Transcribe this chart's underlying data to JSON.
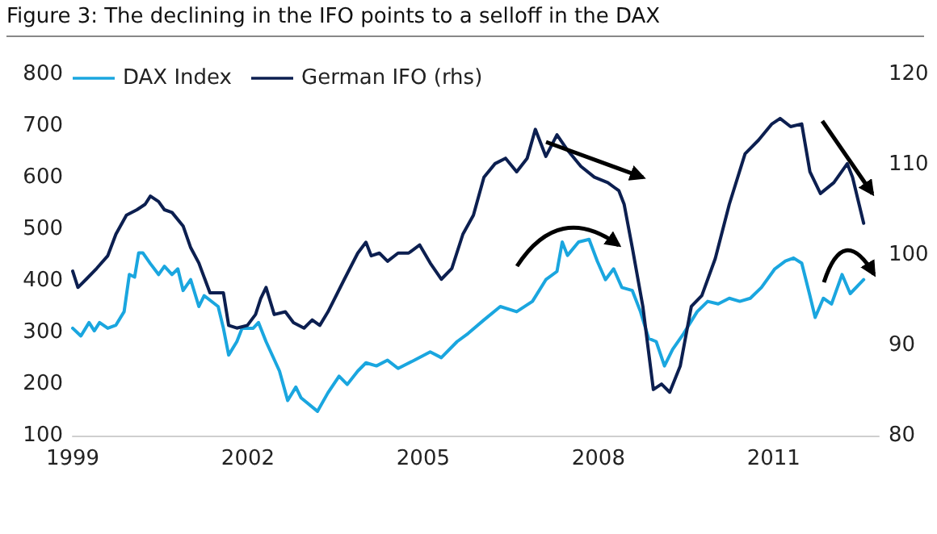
{
  "chart_data": {
    "type": "line",
    "title": "Figure 3: The declining in the IFO points to a selloff in the DAX",
    "xlim": [
      1999,
      2012.8
    ],
    "xticks": [
      1999,
      2002,
      2005,
      2008,
      2011
    ],
    "ylim": [
      100,
      800
    ],
    "yticks": [
      100,
      200,
      300,
      400,
      500,
      600,
      700,
      800
    ],
    "y2lim": [
      80,
      120
    ],
    "y2ticks": [
      80,
      90,
      100,
      110,
      120
    ],
    "grid": false,
    "legend": "top left",
    "marker": "none",
    "line_style": "solid",
    "series": [
      {
        "name": "DAX Index",
        "color": "#1aa6df",
        "x": [
          1999.0,
          1999.14,
          1999.28,
          1999.37,
          1999.46,
          1999.6,
          1999.74,
          1999.88,
          1999.97,
          2000.06,
          2000.13,
          2000.2,
          2000.33,
          2000.47,
          2000.57,
          2000.7,
          2000.8,
          2000.89,
          2001.02,
          2001.16,
          2001.25,
          2001.49,
          2001.58,
          2001.67,
          2001.81,
          2001.9,
          2002.09,
          2002.18,
          2002.31,
          2002.54,
          2002.68,
          2002.82,
          2002.91,
          2003.19,
          2003.37,
          2003.56,
          2003.7,
          2003.88,
          2004.02,
          2004.2,
          2004.39,
          2004.57,
          2004.85,
          2005.12,
          2005.31,
          2005.58,
          2005.77,
          2006.04,
          2006.32,
          2006.6,
          2006.87,
          2007.1,
          2007.29,
          2007.38,
          2007.47,
          2007.66,
          2007.84,
          2007.98,
          2008.12,
          2008.26,
          2008.4,
          2008.58,
          2008.72,
          2008.86,
          2008.99,
          2009.13,
          2009.27,
          2009.46,
          2009.69,
          2009.87,
          2010.05,
          2010.24,
          2010.42,
          2010.6,
          2010.79,
          2011.02,
          2011.2,
          2011.34,
          2011.48,
          2011.62,
          2011.71,
          2011.85,
          2011.99,
          2012.17,
          2012.31,
          2012.54
        ],
        "values": [
          308,
          293,
          319,
          303,
          319,
          308,
          314,
          340,
          412,
          407,
          454,
          454,
          433,
          412,
          428,
          412,
          423,
          381,
          402,
          350,
          371,
          350,
          308,
          256,
          282,
          308,
          308,
          319,
          282,
          225,
          168,
          194,
          173,
          147,
          183,
          215,
          199,
          225,
          241,
          235,
          246,
          230,
          246,
          262,
          251,
          282,
          298,
          324,
          350,
          340,
          360,
          402,
          418,
          475,
          449,
          475,
          480,
          438,
          402,
          423,
          387,
          381,
          340,
          288,
          282,
          235,
          267,
          298,
          340,
          360,
          355,
          366,
          360,
          366,
          387,
          423,
          438,
          444,
          434,
          371,
          329,
          366,
          355,
          412,
          375,
          402
        ]
      },
      {
        "name": "German IFO (rhs)",
        "color": "#0c1f50",
        "axis": "y2",
        "x": [
          1999.0,
          1999.09,
          1999.23,
          1999.41,
          1999.6,
          1999.74,
          1999.92,
          2000.1,
          2000.24,
          2000.33,
          2000.47,
          2000.57,
          2000.7,
          2000.89,
          2001.02,
          2001.16,
          2001.35,
          2001.58,
          2001.67,
          2001.81,
          2001.99,
          2002.13,
          2002.22,
          2002.31,
          2002.45,
          2002.64,
          2002.78,
          2002.96,
          2003.1,
          2003.23,
          2003.37,
          2003.65,
          2003.88,
          2004.02,
          2004.11,
          2004.25,
          2004.39,
          2004.57,
          2004.75,
          2004.94,
          2005.12,
          2005.31,
          2005.49,
          2005.68,
          2005.86,
          2006.04,
          2006.23,
          2006.41,
          2006.6,
          2006.78,
          2006.92,
          2007.1,
          2007.29,
          2007.47,
          2007.7,
          2007.93,
          2008.16,
          2008.35,
          2008.44,
          2008.58,
          2008.76,
          2008.94,
          2009.08,
          2009.22,
          2009.4,
          2009.59,
          2009.77,
          2010.0,
          2010.24,
          2010.51,
          2010.74,
          2010.97,
          2011.11,
          2011.29,
          2011.48,
          2011.62,
          2011.8,
          2012.03,
          2012.26,
          2012.35,
          2012.54
        ],
        "values": [
          98.2,
          96.4,
          97.3,
          98.5,
          99.9,
          102.3,
          104.4,
          105,
          105.6,
          106.5,
          105.9,
          105,
          104.7,
          103.2,
          100.8,
          99.1,
          95.8,
          95.8,
          92.2,
          91.9,
          92.2,
          93.4,
          95.2,
          96.4,
          93.4,
          93.7,
          92.5,
          91.9,
          92.8,
          92.2,
          93.7,
          97.3,
          100.2,
          101.4,
          99.9,
          100.2,
          99.3,
          100.2,
          100.2,
          101.1,
          99.1,
          97.3,
          98.5,
          102.3,
          104.4,
          108.6,
          110.1,
          110.7,
          109.2,
          110.7,
          113.9,
          110.9,
          113.3,
          111.6,
          109.8,
          108.6,
          108,
          107.1,
          105.6,
          100.8,
          94.3,
          85.1,
          85.7,
          84.8,
          87.7,
          94.3,
          95.5,
          99.6,
          105.6,
          111.2,
          112.7,
          114.5,
          115.1,
          114.2,
          114.5,
          109.2,
          106.8,
          108,
          110.1,
          108.6,
          103.5
        ]
      }
    ]
  }
}
